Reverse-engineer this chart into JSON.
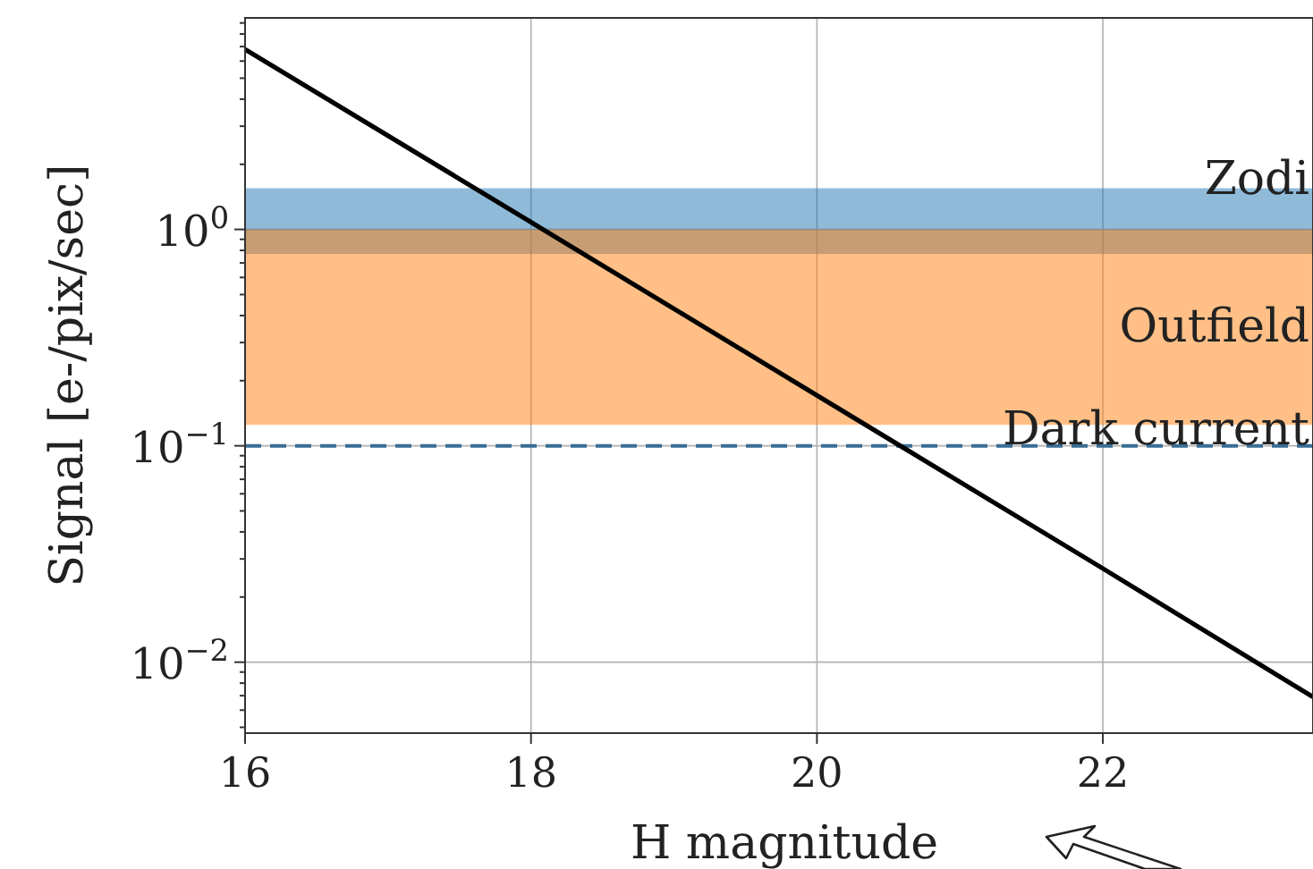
{
  "chart_data": {
    "type": "line",
    "xlabel": "H magnitude",
    "ylabel": "Signal [e-/pix/sec]",
    "log": "y",
    "grid": true,
    "line_style": "solid",
    "marker": "none",
    "xlim": [
      16,
      23.47
    ],
    "xticks": [
      16,
      18,
      20,
      22
    ],
    "ylim": [
      0.0047,
      9.5
    ],
    "yticks": [
      {
        "value": 0.005,
        "label": null
      },
      {
        "value": 0.006,
        "label": null
      },
      {
        "value": 0.007,
        "label": null
      },
      {
        "value": 0.008,
        "label": null
      },
      {
        "value": 0.009,
        "label": null
      },
      {
        "value": 0.01,
        "label": "10$^{−2}$"
      },
      {
        "value": 0.02,
        "label": null
      },
      {
        "value": 0.03,
        "label": null
      },
      {
        "value": 0.04,
        "label": null
      },
      {
        "value": 0.05,
        "label": null
      },
      {
        "value": 0.06,
        "label": null
      },
      {
        "value": 0.07,
        "label": null
      },
      {
        "value": 0.08,
        "label": null
      },
      {
        "value": 0.09,
        "label": null
      },
      {
        "value": 0.1,
        "label": "10$^{−1}$"
      },
      {
        "value": 0.2,
        "label": null
      },
      {
        "value": 0.3,
        "label": null
      },
      {
        "value": 0.4,
        "label": null
      },
      {
        "value": 0.5,
        "label": null
      },
      {
        "value": 0.6,
        "label": null
      },
      {
        "value": 0.7,
        "label": null
      },
      {
        "value": 0.8,
        "label": null
      },
      {
        "value": 0.9,
        "label": null
      },
      {
        "value": 1,
        "label": "10$^{0}$"
      },
      {
        "value": 2,
        "label": null
      },
      {
        "value": 3,
        "label": null
      },
      {
        "value": 4,
        "label": null
      },
      {
        "value": 5,
        "label": null
      },
      {
        "value": 6,
        "label": null
      },
      {
        "value": 7,
        "label": null
      },
      {
        "value": 8,
        "label": null
      },
      {
        "value": 9,
        "label": null
      }
    ],
    "x": [
      16,
      18,
      20,
      22,
      23.47
    ],
    "series": [
      {
        "color": "#000000",
        "values": [
          6.8,
          1.08,
          0.171,
          0.0271,
          0.0069
        ]
      }
    ],
    "bands": [
      {
        "axis": "y",
        "from": 0.77,
        "to": 1.55,
        "label": "Zodi",
        "color": "#1f77b4"
      },
      {
        "axis": "y",
        "from": 0.125,
        "to": 1.0,
        "label": "Outfield",
        "color": "#ff7f0e"
      }
    ],
    "ref_lines": [
      {
        "axis": "y",
        "value": 0.1,
        "label": "Dark current",
        "color": "#3a6d94",
        "line_style": "dashed"
      }
    ]
  }
}
